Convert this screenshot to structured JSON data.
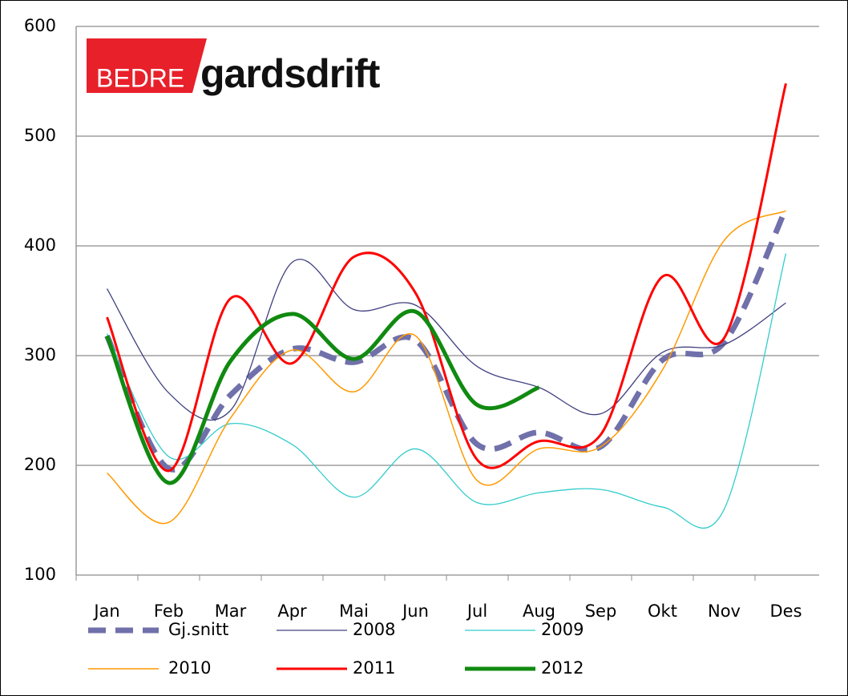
{
  "logo": {
    "left": "BEDRE",
    "right": "gardsdrift"
  },
  "chart_data": {
    "type": "line",
    "categories": [
      "Jan",
      "Feb",
      "Mar",
      "Apr",
      "Mai",
      "Jun",
      "Jul",
      "Aug",
      "Sep",
      "Okt",
      "Nov",
      "Des"
    ],
    "ylim": [
      100,
      600
    ],
    "yticks": [
      100,
      200,
      300,
      400,
      500,
      600
    ],
    "grid": true,
    "series": [
      {
        "name": "Gj.snitt",
        "color": "#7070aa",
        "dashed": true,
        "values": [
          318,
          197,
          264,
          306,
          294,
          314,
          219,
          230,
          217,
          296,
          312,
          434
        ]
      },
      {
        "name": "2008",
        "color": "#404080",
        "values": [
          361,
          266,
          250,
          385,
          342,
          346,
          290,
          271,
          247,
          303,
          310,
          348
        ]
      },
      {
        "name": "2009",
        "color": "#33cccc",
        "values": [
          320,
          208,
          238,
          219,
          171,
          215,
          166,
          175,
          178,
          162,
          160,
          393
        ]
      },
      {
        "name": "2010",
        "color": "#ff9900",
        "values": [
          193,
          148,
          243,
          305,
          267,
          318,
          186,
          215,
          217,
          287,
          405,
          432
        ]
      },
      {
        "name": "2011",
        "color": "#ff0000",
        "values": [
          335,
          195,
          352,
          293,
          390,
          357,
          205,
          222,
          228,
          372,
          316,
          548
        ]
      },
      {
        "name": "2012",
        "color": "#108a10",
        "values": [
          318,
          184,
          295,
          338,
          297,
          340,
          255,
          271,
          null,
          null,
          null,
          null
        ]
      }
    ]
  }
}
